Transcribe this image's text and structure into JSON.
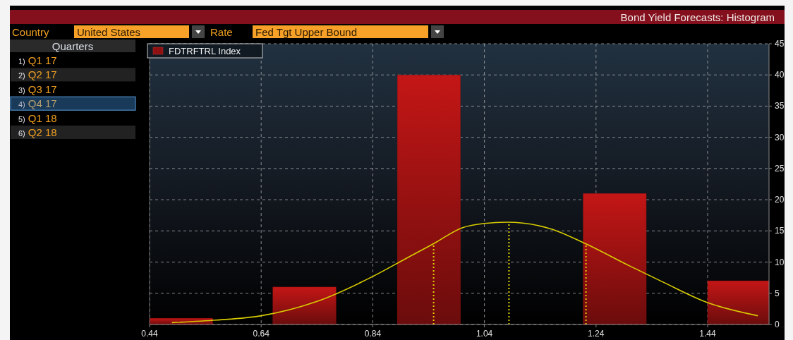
{
  "chart_data": {
    "type": "histogram",
    "title": "Bond Yield Forecasts: Histogram",
    "annotations": [
      "Country",
      "United States",
      "Rate",
      "Fed Tgt Upper Bound",
      "Quarters",
      "1) Q1 17",
      "2) Q2 17",
      "3) Q3 17",
      "4) Q4 17",
      "5) Q1 18",
      "6) Q2 18"
    ],
    "bins": [
      0.44,
      0.553,
      0.661,
      0.774,
      0.884,
      0.997,
      1.217,
      1.33,
      1.44,
      1.55
    ],
    "series": [
      {
        "name": "FDTRFTRL Index",
        "color": "#8e1010",
        "values": [
          1,
          0,
          6,
          0,
          40,
          0,
          21,
          0,
          7
        ]
      },
      {
        "type": "line",
        "color": "#d8cc00",
        "x": [
          0.48,
          0.56,
          0.64,
          0.74,
          0.84,
          0.9,
          0.95,
          1.0,
          1.04,
          1.08,
          1.16,
          1.22,
          1.3,
          1.36,
          1.44,
          1.53
        ],
        "values": [
          0.3,
          0.7,
          1.4,
          3.7,
          7.7,
          10.6,
          13,
          15.5,
          16.2,
          16.4,
          15.3,
          13,
          9.4,
          6.8,
          3.5,
          1.4
        ]
      }
    ],
    "ref_lines": [
      {
        "axis": "x",
        "value": 0.949,
        "color": "#e0d000",
        "line_style": "dotted"
      },
      {
        "axis": "x",
        "value": 1.084,
        "color": "#e0d000",
        "line_style": "dotted"
      },
      {
        "axis": "x",
        "value": 1.222,
        "color": "#e0d000",
        "line_style": "dotted"
      }
    ],
    "xlim": [
      0.44,
      1.55
    ],
    "xticks": [
      0.44,
      0.64,
      0.84,
      1.04,
      1.24,
      1.44
    ],
    "ylim": [
      0,
      45
    ],
    "yticks": [
      0,
      5,
      10,
      15,
      20,
      25,
      30,
      35,
      40,
      45
    ],
    "grid": true,
    "legend": "top left"
  }
}
